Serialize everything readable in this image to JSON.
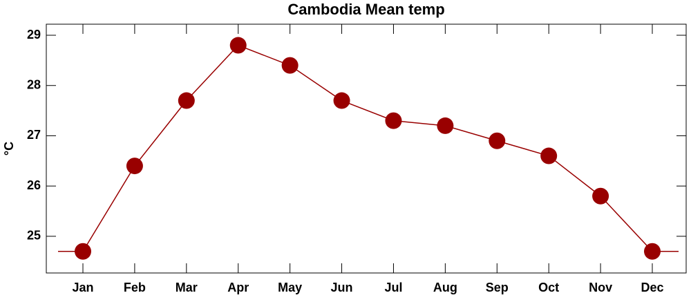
{
  "chart_data": {
    "type": "line",
    "title": "Cambodia Mean temp",
    "y_label": "°C",
    "categories": [
      "Jan",
      "Feb",
      "Mar",
      "Apr",
      "May",
      "Jun",
      "Jul",
      "Aug",
      "Sep",
      "Oct",
      "Nov",
      "Dec"
    ],
    "series": [
      {
        "name": "Mean temp",
        "color": "#990000",
        "values": [
          24.7,
          26.4,
          27.7,
          28.8,
          28.4,
          27.7,
          27.3,
          27.2,
          26.9,
          26.6,
          25.8,
          24.7
        ]
      }
    ],
    "ylim": [
      24.27,
      29.22
    ],
    "yticks": [
      25,
      26,
      27,
      28,
      29
    ]
  }
}
